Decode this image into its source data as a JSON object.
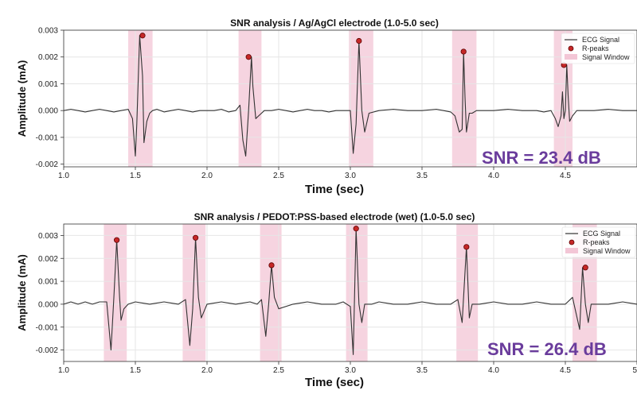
{
  "chart_data": [
    {
      "type": "line",
      "title": "SNR analysis / Ag/AgCl electrode (1.0-5.0 sec)",
      "xlabel": "Time (sec)",
      "ylabel": "Amplitude (mA)",
      "xlim": [
        1.0,
        5.0
      ],
      "ylim": [
        -0.0021,
        0.003
      ],
      "xticks": [
        1.0,
        1.5,
        2.0,
        2.5,
        3.0,
        3.5,
        4.0,
        4.5
      ],
      "xtick_labels": [
        "1.0",
        "1.5",
        "2.0",
        "2.5",
        "3.0",
        "3.5",
        "4.0",
        "4.5"
      ],
      "yticks": [
        -0.002,
        -0.001,
        0.0,
        0.001,
        0.002,
        0.003
      ],
      "ytick_labels": [
        "-0.002",
        "-0.001",
        "0.000",
        "0.001",
        "0.002",
        "0.003"
      ],
      "grid": true,
      "legend": {
        "position": "top-right",
        "entries": [
          "ECG Signal",
          "R-peaks",
          "Signal Window"
        ]
      },
      "annotation": "SNR = 23.4 dB",
      "colors": {
        "signal": "#333333",
        "peak": "#c62828",
        "window": "#f3c6d6",
        "annotation": "#6a3c9c"
      },
      "series": [
        {
          "name": "ECG Signal",
          "x": [
            1.0,
            1.05,
            1.1,
            1.15,
            1.2,
            1.25,
            1.3,
            1.35,
            1.4,
            1.45,
            1.48,
            1.5,
            1.51,
            1.53,
            1.55,
            1.56,
            1.58,
            1.6,
            1.62,
            1.65,
            1.7,
            1.75,
            1.8,
            1.85,
            1.9,
            1.95,
            2.0,
            2.05,
            2.1,
            2.15,
            2.2,
            2.23,
            2.25,
            2.27,
            2.29,
            2.31,
            2.32,
            2.34,
            2.36,
            2.4,
            2.45,
            2.5,
            2.55,
            2.6,
            2.65,
            2.7,
            2.75,
            2.8,
            2.85,
            2.9,
            2.95,
            3.0,
            3.02,
            3.04,
            3.06,
            3.08,
            3.1,
            3.13,
            3.2,
            3.3,
            3.4,
            3.5,
            3.6,
            3.65,
            3.7,
            3.73,
            3.76,
            3.78,
            3.79,
            3.8,
            3.81,
            3.83,
            3.85,
            3.88,
            3.9,
            3.95,
            4.0,
            4.1,
            4.2,
            4.3,
            4.35,
            4.4,
            4.43,
            4.45,
            4.47,
            4.48,
            4.49,
            4.5,
            4.51,
            4.52,
            4.53,
            4.55,
            4.58,
            4.6,
            4.7,
            4.8,
            4.9,
            5.0
          ],
          "y": [
            0.0,
            5e-05,
            0.0,
            -5e-05,
            0.0,
            5e-05,
            0.0,
            -5e-05,
            0.0,
            5e-05,
            -0.0003,
            -0.0017,
            -0.0005,
            0.0028,
            0.0013,
            -0.0012,
            -0.0004,
            -0.0001,
            0.0,
            5e-05,
            -5e-05,
            0.0,
            5e-05,
            0.0,
            -5e-05,
            0.0,
            0.0,
            0.0,
            5e-05,
            -5e-05,
            0.0,
            0.0002,
            -0.0011,
            -0.0017,
            0.0,
            0.002,
            0.0009,
            -0.0003,
            -0.0002,
            0.0,
            0.0,
            5e-05,
            0.0,
            -5e-05,
            0.0,
            5e-05,
            0.0,
            0.0,
            -5e-05,
            0.0,
            0.0,
            0.0,
            -0.0016,
            -0.0005,
            0.0026,
            0.0,
            -0.0008,
            -0.0001,
            0.0,
            5e-05,
            0.0,
            0.0,
            5e-05,
            0.0,
            -5e-05,
            -0.0002,
            -0.0008,
            -0.0007,
            0.0022,
            0.0005,
            -0.0008,
            -0.0001,
            -0.0001,
            0.0,
            0.0,
            0.0,
            0.0,
            5e-05,
            0.0,
            0.0,
            -5e-05,
            0.0,
            -0.0003,
            -0.0006,
            -0.0002,
            0.0007,
            -0.0003,
            0.0,
            0.0017,
            0.0005,
            -0.0004,
            -0.0002,
            0.0,
            0.0,
            0.0,
            5e-05,
            0.0,
            0.0
          ]
        },
        {
          "name": "R-peaks",
          "x": [
            1.55,
            2.29,
            3.06,
            3.79,
            4.49
          ],
          "y": [
            0.0028,
            0.002,
            0.0026,
            0.0022,
            0.0017
          ]
        },
        {
          "name": "Signal Window",
          "ranges": [
            [
              1.45,
              1.62
            ],
            [
              2.22,
              2.38
            ],
            [
              2.99,
              3.16
            ],
            [
              3.71,
              3.88
            ],
            [
              4.42,
              4.55
            ]
          ]
        }
      ]
    },
    {
      "type": "line",
      "title": "SNR analysis / PEDOT:PSS-based electrode (wet) (1.0-5.0 sec)",
      "xlabel": "Time (sec)",
      "ylabel": "Amplitude (mA)",
      "xlim": [
        1.0,
        5.0
      ],
      "ylim": [
        -0.0025,
        0.0035
      ],
      "xticks": [
        1.0,
        1.5,
        2.0,
        2.5,
        3.0,
        3.5,
        4.0,
        4.5,
        5.0
      ],
      "xtick_labels": [
        "1.0",
        "1.5",
        "2.0",
        "2.5",
        "3.0",
        "3.5",
        "4.0",
        "4.5",
        "5"
      ],
      "yticks": [
        -0.002,
        -0.001,
        0.0,
        0.001,
        0.002,
        0.003
      ],
      "ytick_labels": [
        "-0.002",
        "-0.001",
        "0.000",
        "0.001",
        "0.002",
        "0.003"
      ],
      "grid": true,
      "legend": {
        "position": "top-right",
        "entries": [
          "ECG Signal",
          "R-peaks",
          "Signal Window"
        ]
      },
      "annotation": "SNR = 26.4 dB",
      "colors": {
        "signal": "#333333",
        "peak": "#c62828",
        "window": "#f3c6d6",
        "annotation": "#6a3c9c"
      },
      "series": [
        {
          "name": "ECG Signal",
          "x": [
            1.0,
            1.05,
            1.1,
            1.15,
            1.2,
            1.25,
            1.3,
            1.33,
            1.35,
            1.37,
            1.39,
            1.4,
            1.42,
            1.45,
            1.5,
            1.6,
            1.7,
            1.8,
            1.85,
            1.88,
            1.9,
            1.92,
            1.94,
            1.96,
            2.0,
            2.1,
            2.2,
            2.3,
            2.35,
            2.38,
            2.41,
            2.43,
            2.45,
            2.47,
            2.5,
            2.6,
            2.7,
            2.8,
            2.9,
            2.95,
            3.0,
            3.02,
            3.04,
            3.06,
            3.08,
            3.1,
            3.15,
            3.2,
            3.3,
            3.4,
            3.5,
            3.6,
            3.7,
            3.75,
            3.78,
            3.81,
            3.83,
            3.85,
            3.87,
            3.9,
            4.0,
            4.1,
            4.2,
            4.3,
            4.4,
            4.5,
            4.55,
            4.6,
            4.62,
            4.64,
            4.66,
            4.68,
            4.7,
            4.8,
            4.9,
            5.0
          ],
          "y": [
            0.0,
            0.0001,
            0.0,
            0.0001,
            0.0,
            0.0001,
            0.0001,
            -0.002,
            0.0003,
            0.0028,
            0.0003,
            -0.0007,
            -0.0002,
            0.0,
            0.0001,
            0.0,
            0.0001,
            0.0,
            0.0002,
            -0.0018,
            -0.0002,
            0.0029,
            0.0003,
            -0.0006,
            0.0,
            0.0001,
            0.0,
            0.0001,
            0.0,
            0.0002,
            -0.0014,
            0.0,
            0.0017,
            0.0003,
            -0.0002,
            0.0,
            0.0001,
            0.0,
            0.0,
            0.0001,
            -0.0001,
            -0.0022,
            0.0033,
            0.0,
            -0.0008,
            0.0,
            0.0,
            0.0001,
            0.0,
            0.0,
            0.0001,
            0.0,
            0.0,
            0.0002,
            -0.0008,
            0.0025,
            -0.0006,
            0.0,
            0.0,
            0.0,
            0.0001,
            0.0,
            0.0,
            0.0001,
            0.0,
            0.0,
            0.0003,
            -0.0011,
            0.0016,
            0.0,
            -0.0008,
            0.0,
            0.0,
            0.0,
            0.0001,
            0.0
          ]
        },
        {
          "name": "R-peaks",
          "x": [
            1.37,
            1.92,
            2.45,
            3.04,
            3.81,
            4.64
          ],
          "y": [
            0.0028,
            0.0029,
            0.0017,
            0.0033,
            0.0025,
            0.0016
          ]
        },
        {
          "name": "Signal Window",
          "ranges": [
            [
              1.28,
              1.44
            ],
            [
              1.83,
              1.99
            ],
            [
              2.37,
              2.52
            ],
            [
              2.97,
              3.12
            ],
            [
              3.74,
              3.89
            ],
            [
              4.55,
              4.72
            ]
          ]
        }
      ]
    }
  ]
}
